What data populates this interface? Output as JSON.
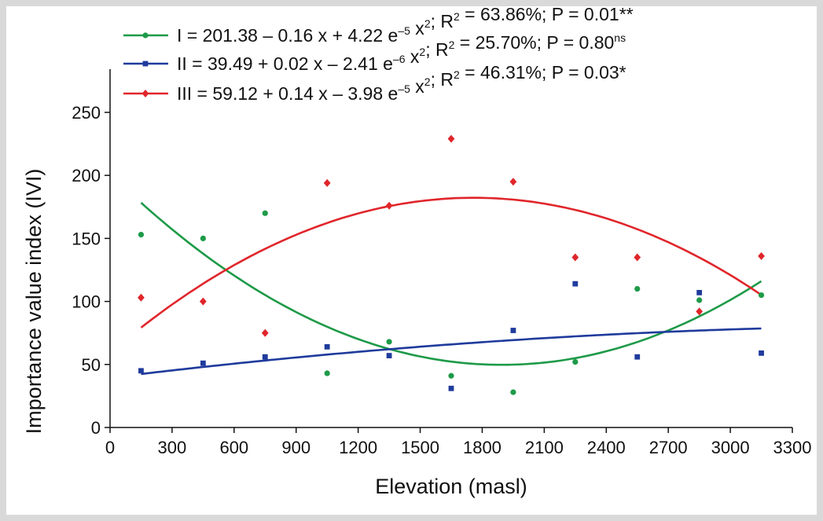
{
  "chart_data": {
    "type": "scatter",
    "xlabel": "Elevation (masl)",
    "ylabel": "Importance value index (IVI)",
    "xlim": [
      0,
      3300
    ],
    "ylim": [
      0,
      250
    ],
    "xticks": [
      "0",
      "300",
      "600",
      "900",
      "1200",
      "1500",
      "1800",
      "2100",
      "2400",
      "2700",
      "3000",
      "3300"
    ],
    "yticks": [
      "0",
      "50",
      "100",
      "150",
      "200",
      "250"
    ],
    "grid": false,
    "legend_position": "top",
    "series": [
      {
        "name": "I",
        "color": "#1e9a48",
        "marker": "circle",
        "x": [
          150,
          450,
          750,
          1050,
          1350,
          1650,
          1950,
          2250,
          2550,
          2850,
          3150
        ],
        "y": [
          153,
          150,
          170,
          43,
          68,
          41,
          28,
          52,
          110,
          101,
          105
        ],
        "fit": {
          "type": "quadratic",
          "a": 201.38,
          "b": -0.16,
          "c": 4.22e-05
        },
        "legend_label": {
          "prefix": "I = 201.38 – 0.16 x + 4.22 e",
          "exp": "–5",
          "mid": " x",
          "sq": "2",
          "r2": "; R",
          "r2sup": "2",
          "tail": " = 63.86%; P = 0.01**"
        }
      },
      {
        "name": "II",
        "color": "#1f3b9c",
        "marker": "square",
        "x": [
          150,
          450,
          750,
          1050,
          1350,
          1650,
          1950,
          2250,
          2550,
          2850,
          3150
        ],
        "y": [
          45,
          51,
          56,
          64,
          57,
          31,
          77,
          114,
          56,
          107,
          59
        ],
        "fit": {
          "type": "quadratic",
          "a": 39.49,
          "b": 0.02,
          "c": -2.41e-06
        },
        "legend_label": {
          "prefix": "II = 39.49 + 0.02 x – 2.41 e",
          "exp": "–6",
          "mid": " x",
          "sq": "2",
          "r2": "; R",
          "r2sup": "2",
          "tail": " = 25.70%; P = 0.80",
          "tailsup": "ns"
        }
      },
      {
        "name": "III",
        "color": "#e0262b",
        "marker": "diamond",
        "x": [
          150,
          450,
          750,
          1050,
          1350,
          1650,
          1950,
          2250,
          2550,
          2850,
          3150
        ],
        "y": [
          103,
          100,
          75,
          194,
          176,
          229,
          195,
          135,
          135,
          92,
          136
        ],
        "fit": {
          "type": "quadratic",
          "a": 59.12,
          "b": 0.14,
          "c": -3.98e-05
        },
        "legend_label": {
          "prefix": "III = 59.12 + 0.14 x – 3.98 e",
          "exp": "–5",
          "mid": " x",
          "sq": "2",
          "r2": "; R",
          "r2sup": "2",
          "tail": " = 46.31%; P = 0.03*"
        }
      }
    ]
  }
}
